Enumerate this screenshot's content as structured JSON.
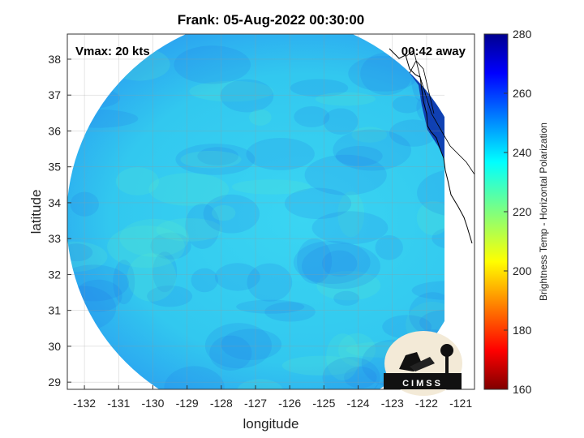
{
  "chart_data": {
    "type": "heatmap",
    "title": "Frank: 05-Aug-2022 00:30:00",
    "xlabel": "longitude",
    "ylabel": "latitude",
    "xlim": [
      -132.5,
      -120.6
    ],
    "ylim": [
      28.8,
      38.7
    ],
    "xticks": [
      -132,
      -131,
      -130,
      -129,
      -128,
      -127,
      -126,
      -125,
      -124,
      -123,
      -122,
      -121
    ],
    "yticks": [
      29,
      30,
      31,
      32,
      33,
      34,
      35,
      36,
      37,
      38
    ],
    "grid": true,
    "colorbar": {
      "label": "Brightness Temp - Horizontal Polarization",
      "range": [
        160,
        280
      ],
      "ticks": [
        160,
        180,
        200,
        220,
        240,
        260,
        280
      ],
      "colormap": "jet"
    },
    "annotations": {
      "vmax": "Vmax: 20 kts",
      "time_offset": "00:42 away"
    },
    "swath": {
      "center_lon": -126.5,
      "center_lat": 33.3,
      "typical_value": 238,
      "min_value": 226,
      "max_value": 266
    }
  },
  "logo_text": "CIMSS"
}
